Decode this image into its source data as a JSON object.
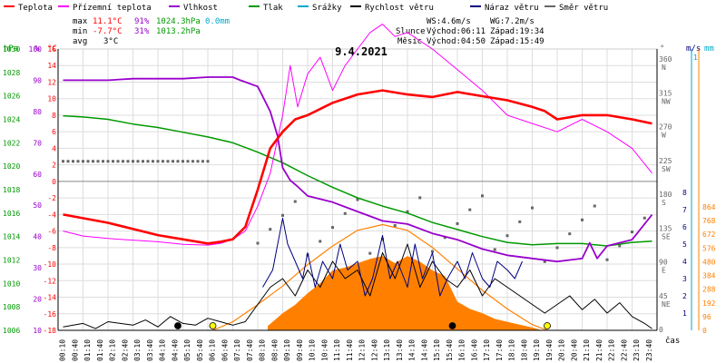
{
  "chart_data": {
    "type": "line",
    "title": "9.4.2021",
    "legend": [
      {
        "name": "Teplota",
        "color": "#ff0000"
      },
      {
        "name": "Přízemní teplota",
        "color": "#ff00ff"
      },
      {
        "name": "Vlhkost",
        "color": "#9900cc"
      },
      {
        "name": "Tlak",
        "color": "#009900"
      },
      {
        "name": "Srážky",
        "color": "#00aacc"
      },
      {
        "name": "Rychlost větru",
        "color": "#000000"
      },
      {
        "name": "Náraz větru",
        "color": "#000080"
      },
      {
        "name": "Směr větru",
        "color": "#666666"
      }
    ],
    "stats": {
      "max": {
        "label": "max",
        "temp": "11.1°C",
        "hum": "91%",
        "press": "1024.3hPa",
        "rain": "0.0mm"
      },
      "min": {
        "label": "min",
        "temp": "-7.7°C",
        "hum": "31%",
        "press": "1013.2hPa"
      },
      "avg": {
        "label": "avg",
        "temp": "3°C"
      }
    },
    "wind_info": {
      "ws": "WS:4.6m/s",
      "wg": "WG:7.2m/s"
    },
    "sun_info": {
      "label": "Slunce",
      "rise": "Východ:06:11",
      "set": "Západ:19:34"
    },
    "moon_info": {
      "label": "Měsíc",
      "rise": "Východ:04:50",
      "set": "Západ:15:49"
    },
    "axis_units": {
      "hpa": "hPa",
      "pct": "%",
      "degc": "°C",
      "deg": "°",
      "ms": "m/s",
      "mm": "mm",
      "time": "čas"
    },
    "pressure_ticks": [
      1030,
      1028,
      1026,
      1024,
      1022,
      1020,
      1018,
      1016,
      1014,
      1012,
      1010,
      1008,
      1006
    ],
    "humidity_ticks": [
      100,
      90,
      80,
      70,
      60,
      50,
      40,
      30,
      20,
      10
    ],
    "temp_ticks": [
      16,
      14,
      12,
      10,
      8,
      6,
      4,
      2,
      0,
      -2,
      -4,
      -6,
      -8,
      -10,
      -12,
      -14,
      -16,
      -18
    ],
    "dir_ticks": [
      {
        "v": 360,
        "l": "N"
      },
      {
        "v": 315,
        "l": "NW"
      },
      {
        "v": 270,
        "l": "W"
      },
      {
        "v": 225,
        "l": "SW"
      },
      {
        "v": 180,
        "l": "S"
      },
      {
        "v": 135,
        "l": "SE"
      },
      {
        "v": 90,
        "l": "E"
      },
      {
        "v": 45,
        "l": "NE"
      },
      {
        "v": 0,
        "l": ""
      }
    ],
    "ms_ticks": [
      8,
      7,
      6,
      5,
      4,
      3,
      2,
      1
    ],
    "mm_ticks": [
      1
    ],
    "solar_ticks": [
      864,
      768,
      672,
      576,
      480,
      384,
      288,
      192,
      96,
      0
    ],
    "x_ticks": [
      "00:10",
      "00:40",
      "01:10",
      "01:40",
      "02:10",
      "02:40",
      "03:10",
      "03:40",
      "04:10",
      "04:40",
      "05:10",
      "05:40",
      "06:10",
      "06:40",
      "07:10",
      "07:40",
      "08:10",
      "08:40",
      "09:10",
      "09:40",
      "10:10",
      "10:40",
      "11:10",
      "11:40",
      "12:10",
      "12:40",
      "13:10",
      "13:40",
      "14:10",
      "14:40",
      "15:10",
      "15:40",
      "16:10",
      "16:40",
      "17:10",
      "17:40",
      "18:10",
      "18:40",
      "19:10",
      "19:40",
      "20:10",
      "20:40",
      "21:10",
      "21:40",
      "22:10",
      "22:40",
      "23:10",
      "23:40"
    ],
    "series": {
      "temperature": {
        "name": "Teplota",
        "color": "#ff0000",
        "x": [
          0.2,
          2,
          4,
          6,
          6.5,
          7,
          7.5,
          8,
          8.5,
          9,
          9.5,
          10,
          11,
          12,
          13,
          14,
          15,
          16,
          17,
          18,
          19,
          19.5,
          20,
          21,
          22,
          23,
          23.8
        ],
        "y": [
          -4,
          -5,
          -6.5,
          -7.5,
          -7.3,
          -7,
          -5.5,
          -1,
          4,
          6,
          7.5,
          8,
          9.5,
          10.5,
          11,
          10.5,
          10.2,
          10.8,
          10.3,
          9.8,
          9,
          8.5,
          7.5,
          8,
          8,
          7.5,
          7
        ]
      },
      "ground_temperature": {
        "name": "Přízemní teplota",
        "color": "#ff00ff",
        "x": [
          0.2,
          1,
          2,
          3,
          4,
          5,
          6,
          6.5,
          7,
          7.5,
          8,
          8.5,
          9,
          9.3,
          9.6,
          10,
          10.5,
          11,
          11.5,
          12,
          12.5,
          13,
          13.5,
          14,
          15,
          16,
          17,
          18,
          19,
          20,
          21,
          22,
          23,
          23.8
        ],
        "y": [
          -6,
          -6.6,
          -6.9,
          -7.1,
          -7.3,
          -7.6,
          -7.7,
          -7.5,
          -7,
          -6,
          -3,
          1,
          8,
          14,
          9,
          13,
          15,
          11,
          14,
          16,
          18,
          19,
          17.5,
          18,
          16,
          13.5,
          11,
          8,
          7,
          6,
          7.5,
          6,
          4,
          1
        ]
      },
      "humidity": {
        "name": "Vlhkost",
        "color": "#9900cc",
        "x": [
          0.2,
          1,
          2,
          3,
          4,
          5,
          6,
          7,
          7.3,
          8,
          8.5,
          8.8,
          9,
          9.3,
          9.6,
          10,
          11,
          12,
          13,
          14,
          15,
          16,
          17,
          18,
          19,
          20,
          21,
          21.3,
          21.6,
          22,
          23,
          23.8
        ],
        "y": [
          90,
          90,
          90,
          90.5,
          90.5,
          90.5,
          91,
          91,
          90,
          88,
          80,
          72,
          62,
          58,
          56,
          53,
          51,
          48,
          45,
          44,
          41,
          39,
          36,
          34,
          33,
          32,
          33,
          38,
          33,
          37,
          39,
          47
        ]
      },
      "pressure": {
        "name": "Tlak",
        "color": "#009900",
        "x": [
          0.2,
          1,
          2,
          3,
          4,
          5,
          6,
          7,
          8,
          9,
          10,
          11,
          12,
          13,
          14,
          15,
          16,
          17,
          18,
          19,
          20,
          21,
          22,
          23,
          23.8
        ],
        "y": [
          1024.3,
          1024.2,
          1024.0,
          1023.6,
          1023.3,
          1022.9,
          1022.5,
          1022.0,
          1021.2,
          1020.3,
          1019.2,
          1018.2,
          1017.3,
          1016.6,
          1016.0,
          1015.2,
          1014.6,
          1014.0,
          1013.5,
          1013.3,
          1013.4,
          1013.4,
          1013.2,
          1013.5,
          1013.6
        ]
      },
      "solar": {
        "name": "Solar",
        "color": "#ff8000",
        "x": [
          6.2,
          7,
          8,
          9,
          10,
          11,
          12,
          13,
          14,
          15,
          16,
          17,
          18,
          19,
          19.6
        ],
        "y": [
          0,
          60,
          180,
          310,
          460,
          590,
          700,
          740,
          700,
          580,
          430,
          280,
          150,
          40,
          0
        ]
      },
      "solar_measured": {
        "name": "Solar measured",
        "color": "#ff8000",
        "x": [
          8.4,
          9,
          9.5,
          10,
          10.5,
          11,
          11.5,
          12,
          12.5,
          13,
          13.5,
          14,
          14.5,
          15,
          15.5,
          16,
          16.5,
          17,
          17.5,
          18,
          18.5,
          19,
          19.4
        ],
        "y": [
          30,
          120,
          180,
          260,
          330,
          420,
          440,
          470,
          500,
          520,
          470,
          520,
          480,
          420,
          380,
          200,
          150,
          120,
          80,
          60,
          40,
          20,
          0
        ]
      },
      "wind_speed": {
        "name": "Rychlost větru",
        "color": "#000000",
        "x": [
          0.2,
          1,
          1.5,
          2,
          3,
          3.5,
          4,
          4.5,
          5,
          5.5,
          6,
          6.5,
          7,
          7.5,
          8,
          8.5,
          9,
          9.5,
          10,
          10.5,
          11,
          11.5,
          12,
          12.5,
          13,
          13.5,
          14,
          14.5,
          15,
          15.5,
          16,
          16.5,
          17,
          17.5,
          18,
          18.5,
          19,
          19.5,
          20,
          20.5,
          21,
          21.5,
          22,
          22.5,
          23,
          23.5,
          23.8
        ],
        "y": [
          0.2,
          0.4,
          0.1,
          0.5,
          0.3,
          0.6,
          0.2,
          0.8,
          0.4,
          0.3,
          0.7,
          0.5,
          0.3,
          0.5,
          1.5,
          2.5,
          3,
          2,
          3.5,
          2.5,
          4,
          3,
          3.5,
          2,
          4.5,
          3,
          5,
          2.5,
          4,
          3,
          2.5,
          3.5,
          2,
          3,
          2.5,
          2,
          1.5,
          1,
          1.5,
          2,
          1.2,
          1.8,
          1,
          1.6,
          0.8,
          0.4,
          0.1
        ]
      },
      "wind_gust": {
        "name": "Náraz větru",
        "color": "#000080",
        "x": [
          8.2,
          8.6,
          9,
          9.2,
          9.5,
          9.8,
          10,
          10.3,
          10.6,
          11,
          11.3,
          11.6,
          12,
          12.3,
          12.6,
          13,
          13.3,
          13.6,
          14,
          14.3,
          14.6,
          15,
          15.3,
          15.6,
          16,
          16.3,
          16.6,
          17,
          17.3,
          17.6,
          18,
          18.3,
          18.6
        ],
        "y": [
          2.5,
          3.5,
          6.5,
          5,
          4,
          3,
          4.5,
          2.5,
          4,
          3,
          5,
          3.5,
          4,
          2,
          3,
          5.5,
          3,
          4,
          2.5,
          5,
          3,
          4.5,
          2,
          3,
          4,
          3,
          4.5,
          3,
          2.5,
          4,
          3.5,
          3,
          4
        ]
      }
    }
  }
}
